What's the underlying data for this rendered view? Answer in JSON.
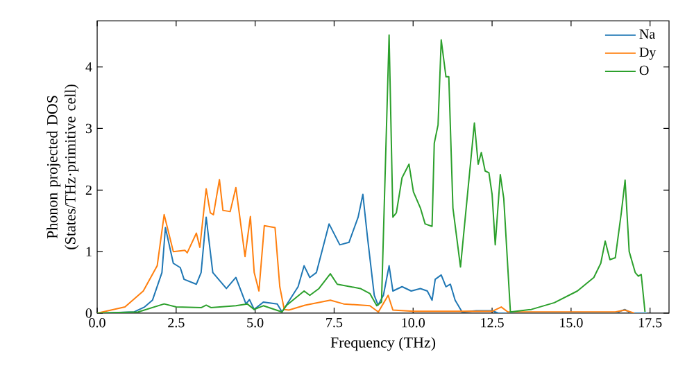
{
  "chart_data": {
    "type": "line",
    "xlabel": "Frequency (THz)",
    "ylabel": "Phonon projected DOS (States/THz·primitive cell)",
    "xlim": [
      0,
      18.1
    ],
    "ylim": [
      0,
      4.75
    ],
    "xticks": [
      {
        "value": 0,
        "label": "0.0"
      },
      {
        "value": 2.5,
        "label": "2.5"
      },
      {
        "value": 5,
        "label": "5.0"
      },
      {
        "value": 7.5,
        "label": "7.5"
      },
      {
        "value": 10,
        "label": "10.0"
      },
      {
        "value": 12.5,
        "label": "12.5"
      },
      {
        "value": 15,
        "label": "15.0"
      },
      {
        "value": 17.5,
        "label": "17.5"
      }
    ],
    "yticks": [
      0,
      1,
      2,
      3,
      4
    ],
    "legend": "top right",
    "grid": false,
    "marker": "none",
    "line_style": "solid",
    "series": [
      {
        "name": "Na",
        "color": "#1f77b4",
        "x": [
          0,
          1.17,
          1.5,
          1.75,
          2.05,
          2.16,
          2.41,
          2.63,
          2.75,
          3.14,
          3.29,
          3.45,
          3.66,
          4.09,
          4.39,
          4.71,
          4.82,
          4.97,
          5.26,
          5.7,
          5.85,
          6.36,
          6.55,
          6.73,
          6.94,
          7.34,
          7.68,
          7.97,
          8.26,
          8.41,
          8.55,
          8.77,
          8.89,
          9.06,
          9.24,
          9.36,
          9.65,
          9.94,
          10.23,
          10.45,
          10.6,
          10.7,
          10.89,
          11.04,
          11.18,
          11.33,
          11.55,
          12.0,
          12.5,
          12.7,
          16.4,
          16.7,
          16.9,
          17.4
        ],
        "values": [
          0,
          0.02,
          0.1,
          0.21,
          0.66,
          1.39,
          0.81,
          0.74,
          0.55,
          0.47,
          0.66,
          1.56,
          0.66,
          0.4,
          0.58,
          0.15,
          0.22,
          0.06,
          0.18,
          0.15,
          0.02,
          0.43,
          0.77,
          0.58,
          0.66,
          1.45,
          1.11,
          1.15,
          1.56,
          1.93,
          1.26,
          0.29,
          0.13,
          0.29,
          0.77,
          0.36,
          0.43,
          0.36,
          0.4,
          0.36,
          0.21,
          0.55,
          0.62,
          0.43,
          0.47,
          0.21,
          0.02,
          0.04,
          0.04,
          0,
          0,
          0.06,
          0,
          0
        ]
      },
      {
        "name": "Dy",
        "color": "#ff7f0e",
        "x": [
          0,
          0.88,
          1.46,
          1.9,
          2.12,
          2.41,
          2.78,
          2.85,
          3.14,
          3.25,
          3.45,
          3.58,
          3.68,
          3.87,
          3.98,
          4.21,
          4.39,
          4.68,
          4.85,
          4.97,
          5.12,
          5.29,
          5.63,
          5.78,
          5.92,
          6.07,
          6.58,
          7.38,
          7.8,
          8.63,
          8.9,
          9.21,
          9.36,
          10,
          12.5,
          12.79,
          13.0,
          16.4,
          16.7,
          17.0
        ],
        "values": [
          0,
          0.1,
          0.36,
          0.77,
          1.6,
          1.0,
          1.02,
          0.98,
          1.3,
          1.07,
          2.02,
          1.63,
          1.6,
          2.17,
          1.67,
          1.65,
          2.04,
          0.92,
          1.57,
          0.66,
          0.36,
          1.42,
          1.39,
          0.43,
          0.06,
          0.05,
          0.13,
          0.21,
          0.15,
          0.12,
          0.02,
          0.29,
          0.05,
          0.03,
          0.03,
          0.1,
          0.02,
          0.02,
          0.05,
          0
        ]
      },
      {
        "name": "O",
        "color": "#2ca02c",
        "x": [
          0,
          1.3,
          2.12,
          2.5,
          3.3,
          3.45,
          3.6,
          4.39,
          4.75,
          4.97,
          5.26,
          5.85,
          6.0,
          6.55,
          6.73,
          7.02,
          7.38,
          7.6,
          8.33,
          8.63,
          8.85,
          9.0,
          9.24,
          9.36,
          9.47,
          9.65,
          9.87,
          10.01,
          10.23,
          10.38,
          10.6,
          10.67,
          10.79,
          10.89,
          11.04,
          11.13,
          11.26,
          11.5,
          11.94,
          12.06,
          12.16,
          12.28,
          12.4,
          12.5,
          12.6,
          12.76,
          12.87,
          13.08,
          13.74,
          14.47,
          15.2,
          15.72,
          15.94,
          16.08,
          16.23,
          16.4,
          16.59,
          16.71,
          16.84,
          17.03,
          17.13,
          17.22,
          17.34
        ],
        "values": [
          0,
          0.02,
          0.15,
          0.1,
          0.09,
          0.13,
          0.09,
          0.12,
          0.15,
          0.06,
          0.12,
          0.02,
          0.13,
          0.36,
          0.29,
          0.4,
          0.64,
          0.47,
          0.4,
          0.32,
          0.12,
          0.18,
          4.52,
          1.56,
          1.63,
          2.2,
          2.42,
          1.97,
          1.71,
          1.45,
          1.41,
          2.76,
          3.06,
          4.44,
          3.84,
          3.84,
          1.71,
          0.75,
          3.09,
          2.42,
          2.61,
          2.31,
          2.28,
          1.93,
          1.11,
          2.25,
          1.86,
          0.02,
          0.06,
          0.17,
          0.36,
          0.58,
          0.81,
          1.17,
          0.87,
          0.9,
          1.63,
          2.16,
          1.0,
          0.66,
          0.6,
          0.63,
          0.02
        ]
      }
    ]
  }
}
